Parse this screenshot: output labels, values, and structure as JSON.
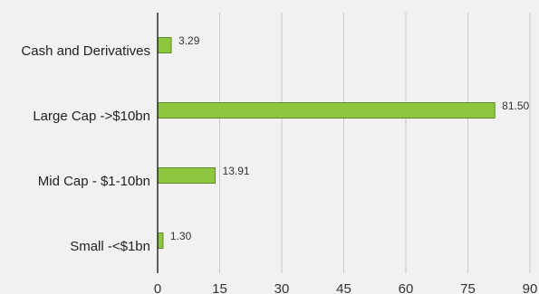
{
  "chart_data": {
    "type": "bar",
    "orientation": "horizontal",
    "categories": [
      "Cash and Derivatives",
      "Large Cap ->$10bn",
      "Mid Cap - $1-10bn",
      "Small -<$1bn"
    ],
    "series": [
      {
        "values": [
          3.29,
          81.5,
          13.91,
          1.3
        ]
      }
    ],
    "value_labels": [
      "3.29",
      "81.50",
      "13.91",
      "1.30"
    ],
    "xlim": [
      0,
      90
    ],
    "xticks": [
      0,
      15,
      30,
      45,
      60,
      75,
      90
    ],
    "xtick_labels": [
      "0",
      "15",
      "30",
      "45",
      "60",
      "75",
      "90"
    ],
    "grid": "vertical",
    "title": "",
    "xlabel": "",
    "ylabel": "",
    "colors": {
      "bar_fill": "#8dc63f",
      "bar_stroke": "#5d8a21",
      "background": "#f1f1f1"
    }
  }
}
